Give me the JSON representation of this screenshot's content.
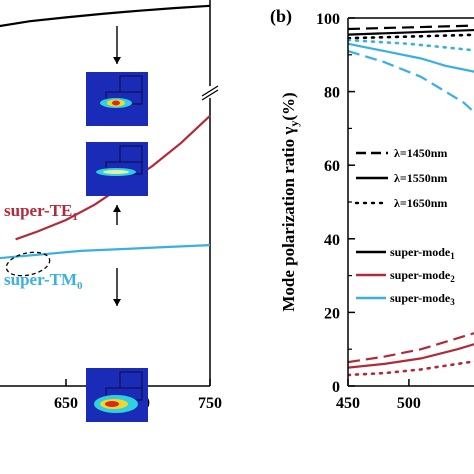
{
  "chart_data": [
    {
      "type": "line",
      "panel": "a",
      "xlim": [
        600,
        750
      ],
      "xticks": [
        "650",
        "700",
        "750"
      ],
      "xtick_values": [
        650,
        700,
        750
      ],
      "axis_break": true,
      "annotations": [
        {
          "label": "super-TE",
          "sub": "1",
          "color": "#b22a3a"
        },
        {
          "label": "super-TM",
          "sub": "0",
          "color": "#39b0e0"
        }
      ],
      "series": [
        {
          "color": "#000000",
          "x": [
            600,
            625,
            650,
            675,
            700,
            725,
            750
          ],
          "y": [
            0.93,
            0.945,
            0.955,
            0.964,
            0.972,
            0.979,
            0.985
          ]
        },
        {
          "color": "#b22a3a",
          "x": [
            615,
            630,
            650,
            670,
            690,
            710,
            730,
            750
          ],
          "y": [
            0.38,
            0.4,
            0.43,
            0.47,
            0.52,
            0.57,
            0.63,
            0.7
          ]
        },
        {
          "color": "#39b0e0",
          "x": [
            600,
            630,
            660,
            690,
            720,
            750
          ],
          "y": [
            0.33,
            0.34,
            0.35,
            0.355,
            0.36,
            0.365
          ]
        }
      ]
    },
    {
      "type": "line",
      "panel": "b",
      "panel_label": "(b)",
      "ylabel": "Mode polarization ratio γ",
      "ylabel_sub": "y",
      "ylabel_unit": "(%)",
      "ylim": [
        0,
        100
      ],
      "yticks": [
        "0",
        "20",
        "40",
        "60",
        "80",
        "100"
      ],
      "ytick_values": [
        0,
        20,
        40,
        60,
        80,
        100
      ],
      "xlim": [
        450,
        560
      ],
      "xticks": [
        "450",
        "500"
      ],
      "xtick_values": [
        450,
        500
      ],
      "legend_linestyle": [
        {
          "label": "λ=1450nm",
          "dash": "dash"
        },
        {
          "label": "λ=1550nm",
          "dash": "solid"
        },
        {
          "label": "λ=1650nm",
          "dash": "dot"
        }
      ],
      "legend_modes": [
        {
          "label": "super-mode",
          "sub": "1",
          "color": "#000000"
        },
        {
          "label": "super-mode",
          "sub": "2",
          "color": "#b22a3a"
        },
        {
          "label": "super-mode",
          "sub": "3",
          "color": "#39b0e0"
        }
      ],
      "series": [
        {
          "mode": 1,
          "wavelength": 1450,
          "dash": "dash",
          "color": "#000000",
          "x": [
            450,
            560
          ],
          "y": [
            97,
            98
          ]
        },
        {
          "mode": 1,
          "wavelength": 1550,
          "dash": "solid",
          "color": "#000000",
          "x": [
            450,
            560
          ],
          "y": [
            95.5,
            96.8
          ]
        },
        {
          "mode": 1,
          "wavelength": 1650,
          "dash": "dot",
          "color": "#000000",
          "x": [
            450,
            560
          ],
          "y": [
            94.5,
            95.5
          ]
        },
        {
          "mode": 3,
          "wavelength": 1450,
          "dash": "dash",
          "color": "#39b0e0",
          "x": [
            450,
            480,
            510,
            530,
            545,
            555,
            560
          ],
          "y": [
            91,
            88,
            84,
            80,
            77,
            74,
            73
          ]
        },
        {
          "mode": 3,
          "wavelength": 1550,
          "dash": "solid",
          "color": "#39b0e0",
          "x": [
            450,
            480,
            510,
            530,
            545,
            560
          ],
          "y": [
            93,
            91,
            89,
            87,
            86,
            85
          ]
        },
        {
          "mode": 3,
          "wavelength": 1650,
          "dash": "dot",
          "color": "#39b0e0",
          "x": [
            450,
            500,
            530,
            560
          ],
          "y": [
            94,
            93,
            92,
            91
          ]
        },
        {
          "mode": 2,
          "wavelength": 1450,
          "dash": "dash",
          "color": "#b22a3a",
          "x": [
            450,
            480,
            510,
            540,
            560
          ],
          "y": [
            6.5,
            8,
            10,
            13,
            15
          ]
        },
        {
          "mode": 2,
          "wavelength": 1550,
          "dash": "solid",
          "color": "#b22a3a",
          "x": [
            450,
            480,
            510,
            540,
            560
          ],
          "y": [
            5,
            6,
            7.5,
            10,
            12
          ]
        },
        {
          "mode": 2,
          "wavelength": 1650,
          "dash": "dot",
          "color": "#b22a3a",
          "x": [
            450,
            480,
            510,
            540,
            560
          ],
          "y": [
            3,
            3.5,
            4.5,
            6,
            7
          ]
        }
      ]
    }
  ]
}
